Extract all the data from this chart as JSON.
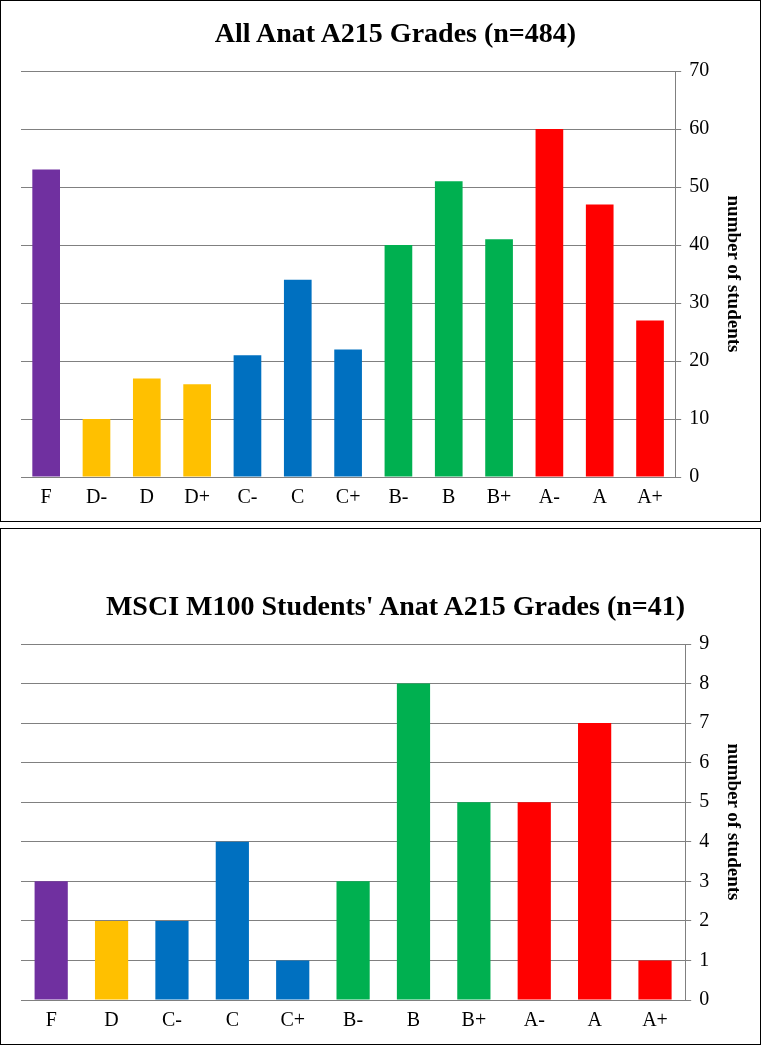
{
  "chart_data": [
    {
      "type": "bar",
      "title": "All Anat A215 Grades (n=484)",
      "ylabel": "number of students",
      "categories": [
        "F",
        "D-",
        "D",
        "D+",
        "C-",
        "C",
        "C+",
        "B-",
        "B",
        "B+",
        "A-",
        "A",
        "A+"
      ],
      "values": [
        53,
        10,
        17,
        16,
        21,
        34,
        22,
        40,
        51,
        41,
        60,
        47,
        27
      ],
      "colors": [
        "#7030a0",
        "#ffc000",
        "#ffc000",
        "#ffc000",
        "#0070c0",
        "#0070c0",
        "#0070c0",
        "#00b050",
        "#00b050",
        "#00b050",
        "#ff0000",
        "#ff0000",
        "#ff0000"
      ],
      "ylim": [
        0,
        70
      ],
      "yticks": [
        0,
        10,
        20,
        30,
        40,
        50,
        60,
        70
      ],
      "grid": "y",
      "legend": false
    },
    {
      "type": "bar",
      "title": "MSCI M100 Students' Anat A215 Grades (n=41)",
      "ylabel": "number of students",
      "categories": [
        "F",
        "D",
        "C-",
        "C",
        "C+",
        "B-",
        "B",
        "B+",
        "A-",
        "A",
        "A+"
      ],
      "values": [
        3,
        2,
        2,
        4,
        1,
        3,
        8,
        5,
        5,
        7,
        1
      ],
      "colors": [
        "#7030a0",
        "#ffc000",
        "#0070c0",
        "#0070c0",
        "#0070c0",
        "#00b050",
        "#00b050",
        "#00b050",
        "#ff0000",
        "#ff0000",
        "#ff0000"
      ],
      "ylim": [
        0,
        9
      ],
      "yticks": [
        0,
        1,
        2,
        3,
        4,
        5,
        6,
        7,
        8,
        9
      ],
      "grid": "y",
      "legend": false
    }
  ]
}
